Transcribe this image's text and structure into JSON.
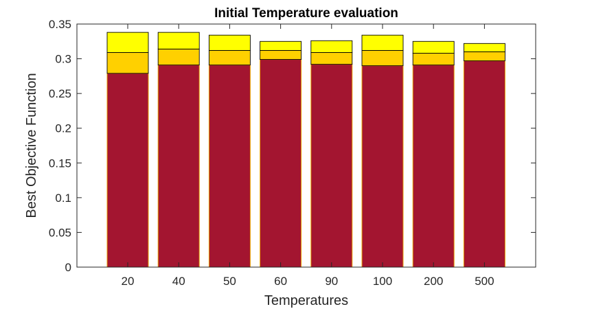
{
  "chart_data": {
    "type": "bar",
    "stacked": true,
    "title": "Initial Temperature evaluation",
    "xlabel": "Temperatures",
    "ylabel": "Best Objective Function",
    "categories": [
      "20",
      "40",
      "50",
      "60",
      "90",
      "100",
      "200",
      "500"
    ],
    "ylim": [
      0,
      0.35
    ],
    "yticks": [
      0,
      0.05,
      0.1,
      0.15,
      0.2,
      0.25,
      0.3,
      0.35
    ],
    "ytick_labels": [
      "0",
      "0.05",
      "0.1",
      "0.15",
      "0.2",
      "0.25",
      "0.3",
      "0.35"
    ],
    "grid": false,
    "series": [
      {
        "color": "#a31530",
        "values": [
          0.279,
          0.291,
          0.291,
          0.299,
          0.292,
          0.29,
          0.291,
          0.297
        ]
      },
      {
        "color": "#ffd000",
        "values": [
          0.03,
          0.023,
          0.021,
          0.013,
          0.017,
          0.022,
          0.017,
          0.013
        ]
      },
      {
        "color": "#ffff00",
        "values": [
          0.029,
          0.024,
          0.022,
          0.013,
          0.017,
          0.022,
          0.017,
          0.012
        ]
      }
    ]
  }
}
